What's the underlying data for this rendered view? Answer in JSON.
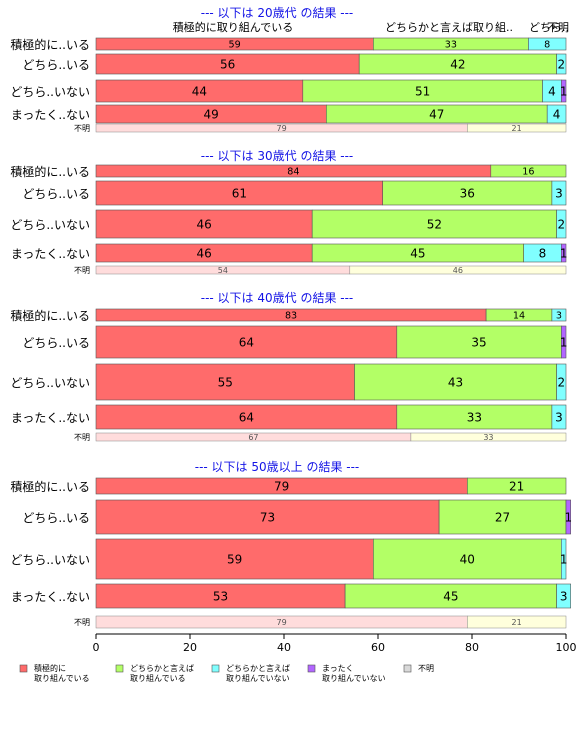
{
  "chart_data": {
    "type": "bar",
    "orientation": "horizontal",
    "stacked": true,
    "xlim": [
      0,
      100
    ],
    "x_ticks": [
      "0",
      "20",
      "40",
      "60",
      "80",
      "100"
    ],
    "colors": [
      "#ff6b6b",
      "#b3ff66",
      "#80ffff",
      "#b266ff",
      "#d9d9d9"
    ],
    "legend": {
      "position": "bottom",
      "entries": [
        {
          "line1": "積極的に",
          "line2": "取り組んでいる"
        },
        {
          "line1": "どちらかと言えば",
          "line2": "取り組んでいる"
        },
        {
          "line1": "どちらかと言えば",
          "line2": "取り組んでいない"
        },
        {
          "line1": "まったく",
          "line2": "取り組んでいない"
        },
        {
          "line1": "不明",
          "line2": ""
        }
      ]
    },
    "top_headers": [
      {
        "label": "積極的に取り組んでいる"
      },
      {
        "label": "どちらかと言えば取り組.."
      },
      {
        "label": "どちら.."
      },
      {
        "label": "不明"
      }
    ],
    "panels": [
      {
        "title": "--- 以下は 20歳代 の結果 ---",
        "rows": [
          {
            "label": "積極的に..いる",
            "values": [
              59,
              33,
              8,
              0
            ]
          },
          {
            "label": "どちら..いる",
            "values": [
              56,
              42,
              2,
              0
            ]
          },
          {
            "label": "どちら..いない",
            "values": [
              44,
              51,
              4,
              1
            ]
          },
          {
            "label": "まったく..ない",
            "values": [
              49,
              47,
              4,
              0
            ]
          }
        ],
        "unknown": {
          "label": "不明",
          "values": [
            79,
            21
          ]
        }
      },
      {
        "title": "--- 以下は 30歳代 の結果 ---",
        "rows": [
          {
            "label": "積極的に..いる",
            "values": [
              84,
              16,
              0,
              0
            ]
          },
          {
            "label": "どちら..いる",
            "values": [
              61,
              36,
              3,
              0
            ]
          },
          {
            "label": "どちら..いない",
            "values": [
              46,
              52,
              2,
              0
            ]
          },
          {
            "label": "まったく..ない",
            "values": [
              46,
              45,
              8,
              1
            ]
          }
        ],
        "unknown": {
          "label": "不明",
          "values": [
            54,
            46
          ]
        }
      },
      {
        "title": "--- 以下は 40歳代 の結果 ---",
        "rows": [
          {
            "label": "積極的に..いる",
            "values": [
              83,
              14,
              3,
              0
            ]
          },
          {
            "label": "どちら..いる",
            "values": [
              64,
              35,
              0,
              1
            ]
          },
          {
            "label": "どちら..いない",
            "values": [
              55,
              43,
              2,
              0
            ]
          },
          {
            "label": "まったく..ない",
            "values": [
              64,
              33,
              3,
              0
            ]
          }
        ],
        "unknown": {
          "label": "不明",
          "values": [
            67,
            33
          ]
        }
      },
      {
        "title": "--- 以下は 50歳以上 の結果 ---",
        "rows": [
          {
            "label": "積極的に..いる",
            "values": [
              79,
              21,
              0,
              0
            ]
          },
          {
            "label": "どちら..いる",
            "values": [
              73,
              27,
              0,
              1
            ]
          },
          {
            "label": "どちら..いない",
            "values": [
              59,
              40,
              1,
              0
            ]
          },
          {
            "label": "まったく..ない",
            "values": [
              53,
              45,
              3,
              0
            ]
          }
        ],
        "unknown": {
          "label": "不明",
          "values": [
            79,
            21
          ]
        }
      }
    ]
  }
}
